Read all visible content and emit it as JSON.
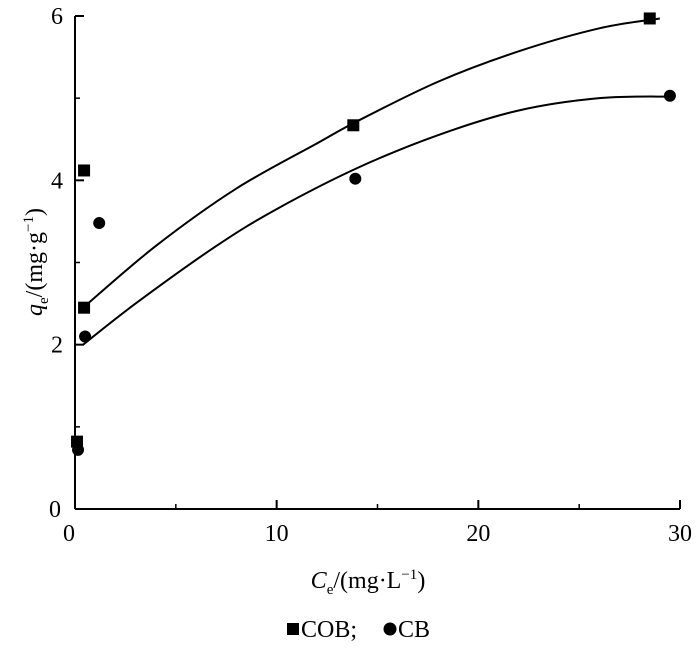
{
  "chart_data": {
    "type": "scatter",
    "title": "",
    "xlabel": {
      "symbol": "C",
      "subscript": "e",
      "unit": "/(mg·L",
      "exponent": "−1",
      "close": ")"
    },
    "ylabel": {
      "symbol": "q",
      "subscript": "e",
      "unit": "/(mg·g",
      "exponent": "−1",
      "close": ")"
    },
    "xlim": [
      0,
      30
    ],
    "ylim": [
      0,
      6
    ],
    "x_ticks": [
      0,
      10,
      20,
      30
    ],
    "y_ticks": [
      0,
      2,
      4,
      6
    ],
    "grid": false,
    "legend_position": "bottom",
    "legend": {
      "cob": "COB;",
      "cb": "CB"
    },
    "series": [
      {
        "name": "COB",
        "marker": "square",
        "points": [
          [
            0.1,
            0.82
          ],
          [
            0.45,
            4.12
          ],
          [
            0.45,
            2.45
          ],
          [
            13.8,
            4.67
          ],
          [
            28.5,
            5.97
          ]
        ],
        "fit_curve": [
          [
            0.4,
            2.45
          ],
          [
            4,
            3.2
          ],
          [
            8,
            3.9
          ],
          [
            12,
            4.45
          ],
          [
            14,
            4.72
          ],
          [
            18,
            5.2
          ],
          [
            22,
            5.57
          ],
          [
            26,
            5.85
          ],
          [
            29,
            5.97
          ]
        ]
      },
      {
        "name": "CB",
        "marker": "circle",
        "points": [
          [
            0.15,
            0.72
          ],
          [
            0.5,
            2.1
          ],
          [
            1.2,
            3.48
          ],
          [
            13.9,
            4.02
          ],
          [
            29.5,
            5.03
          ]
        ],
        "fit_curve": [
          [
            0.4,
            2.0
          ],
          [
            3,
            2.5
          ],
          [
            7,
            3.2
          ],
          [
            10,
            3.65
          ],
          [
            14,
            4.15
          ],
          [
            18,
            4.55
          ],
          [
            22,
            4.85
          ],
          [
            26,
            5.0
          ],
          [
            29.5,
            5.02
          ]
        ]
      }
    ],
    "colors": {
      "axis": "#000000",
      "marker": "#000000",
      "curve": "#000000"
    }
  }
}
